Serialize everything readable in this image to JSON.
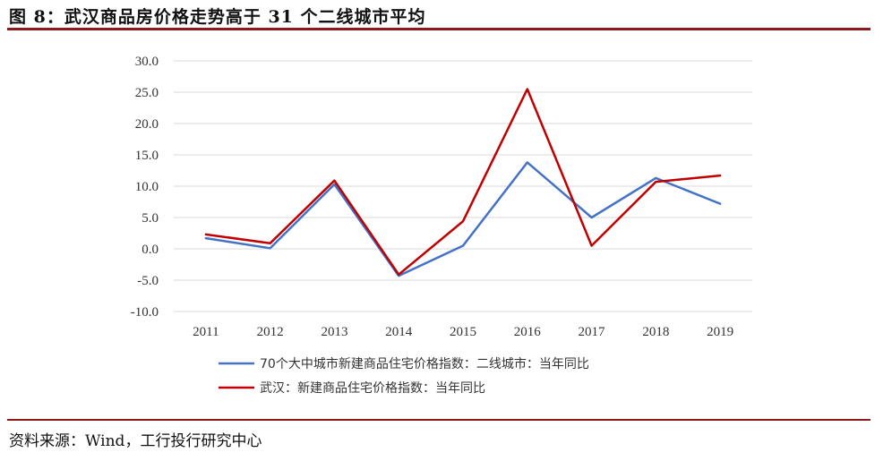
{
  "figure_title": "图 8：武汉商品房价格走势高于 31 个二线城市平均",
  "source_text": "资料来源：Wind，工行投行研究中心",
  "chart_data": {
    "type": "line",
    "title": "",
    "xlabel": "",
    "ylabel": "",
    "x": [
      "2011",
      "2012",
      "2013",
      "2014",
      "2015",
      "2016",
      "2017",
      "2018",
      "2019"
    ],
    "ylim": [
      -10,
      30
    ],
    "yticks": [
      "30.0",
      "25.0",
      "20.0",
      "15.0",
      "10.0",
      "5.0",
      "0.0",
      "-5.0",
      "-10.0"
    ],
    "grid": "horizontal",
    "legend_position": "bottom",
    "series": [
      {
        "name": "70个大中城市新建商品住宅价格指数：二线城市：当年同比",
        "color": "#4472c4",
        "values": [
          1.7,
          0.1,
          10.3,
          -4.3,
          0.5,
          13.8,
          5.0,
          11.3,
          7.2
        ]
      },
      {
        "name": "武汉：新建商品住宅价格指数：当年同比",
        "color": "#c00000",
        "values": [
          2.3,
          0.9,
          10.9,
          -4.1,
          4.4,
          25.5,
          0.5,
          10.7,
          11.7
        ]
      }
    ]
  }
}
